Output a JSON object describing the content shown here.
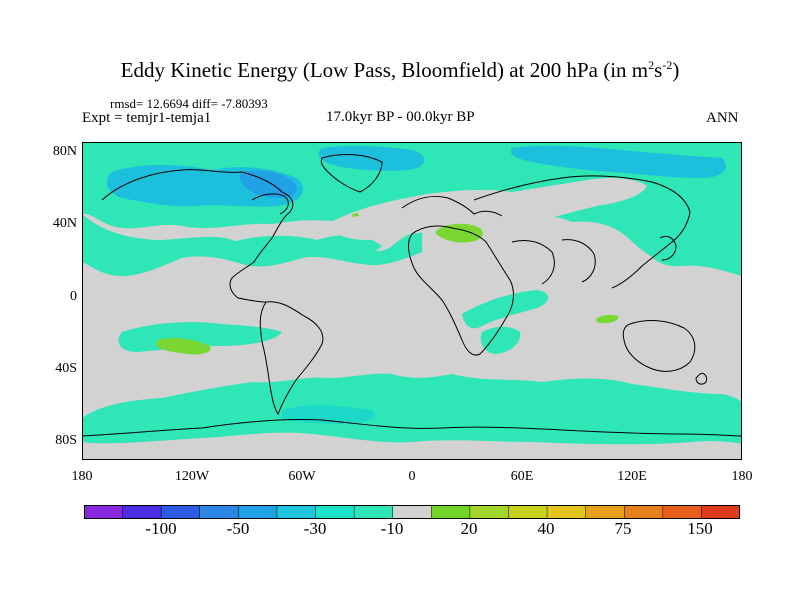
{
  "title": {
    "main": "Eddy Kinetic Energy (Low Pass, Bloomfield) at 200 hPa (in m",
    "sup1": "2",
    "mid": "s",
    "sup2": "-2",
    "end": ")"
  },
  "stats": "rmsd= 12.6694 diff= -7.80393",
  "expt": "Expt = temjr1-temja1",
  "period": "17.0kyr BP - 00.0kyr BP",
  "season": "ANN",
  "lat_labels": [
    "80N",
    "40N",
    "0",
    "40S",
    "80S"
  ],
  "lon_labels": [
    "180",
    "120W",
    "60W",
    "0",
    "60E",
    "120E",
    "180"
  ],
  "colorbar": {
    "labels": [
      "-100",
      "-50",
      "-30",
      "-10",
      "20",
      "40",
      "75",
      "150"
    ],
    "colors": [
      "#8a28e0",
      "#4b2ee6",
      "#2a5ae6",
      "#2c86e6",
      "#22a2e6",
      "#1cc4dc",
      "#1ce0c8",
      "#2ee6b6",
      "#d2d2d2",
      "#72d62a",
      "#a2d62a",
      "#c6d21c",
      "#e2c41c",
      "#e6a01c",
      "#e6801c",
      "#e6601c",
      "#e03a1c"
    ]
  },
  "map_colors": {
    "neutral": "#d2d2d2",
    "cyan_light": "#2ee6b6",
    "cyan": "#1cd8c8",
    "blue_light": "#1cc0dc",
    "blue": "#22a2e6",
    "green": "#7ad630"
  }
}
